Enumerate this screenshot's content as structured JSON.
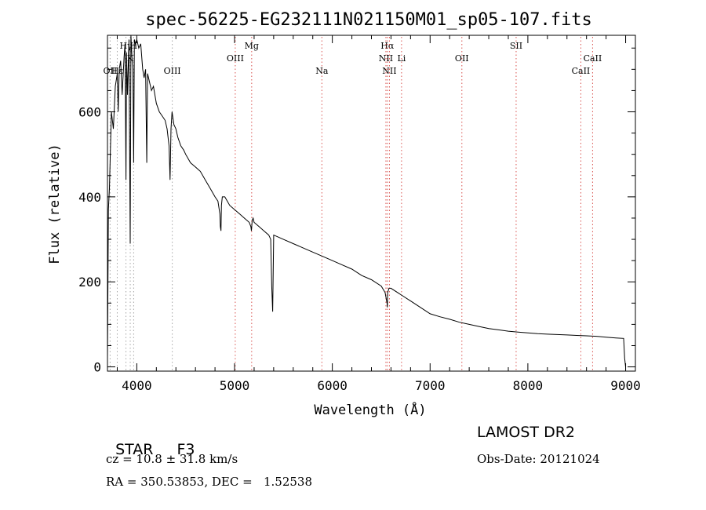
{
  "chart_data": {
    "type": "line",
    "title": "spec-56225-EG232111N021150M01_sp05-107.fits",
    "xlabel": "Wavelength (Å)",
    "ylabel": "Flux (relative)",
    "xlim": [
      3700,
      9100
    ],
    "ylim": [
      -10,
      780
    ],
    "xticks": [
      4000,
      5000,
      6000,
      7000,
      8000,
      9000
    ],
    "yticks": [
      0,
      200,
      400,
      600
    ],
    "grid": false,
    "series": [
      {
        "color": "#000000",
        "x": [
          3700,
          3710,
          3720,
          3740,
          3760,
          3780,
          3800,
          3810,
          3820,
          3835,
          3850,
          3870,
          3880,
          3889,
          3895,
          3905,
          3920,
          3933,
          3940,
          3950,
          3960,
          3968,
          3975,
          3985,
          4000,
          4020,
          4040,
          4060,
          4075,
          4090,
          4102,
          4110,
          4130,
          4150,
          4170,
          4200,
          4230,
          4260,
          4290,
          4310,
          4330,
          4340,
          4350,
          4360,
          4380,
          4400,
          4420,
          4450,
          4480,
          4500,
          4550,
          4600,
          4650,
          4700,
          4750,
          4800,
          4830,
          4850,
          4855,
          4861,
          4866,
          4875,
          4900,
          4950,
          5000,
          5050,
          5100,
          5150,
          5167,
          5172,
          5180,
          5190,
          5200,
          5250,
          5300,
          5350,
          5370,
          5380,
          5390,
          5400,
          5450,
          5500,
          5600,
          5700,
          5800,
          5900,
          6000,
          6100,
          6200,
          6300,
          6400,
          6500,
          6540,
          6560,
          6563,
          6566,
          6580,
          6600,
          6700,
          6800,
          6900,
          7000,
          7100,
          7200,
          7300,
          7400,
          7500,
          7600,
          7700,
          7800,
          7900,
          8000,
          8100,
          8200,
          8300,
          8400,
          8500,
          8600,
          8700,
          8800,
          8900,
          8980,
          8990,
          9000
        ],
        "values": [
          20,
          370,
          420,
          600,
          560,
          660,
          690,
          600,
          700,
          720,
          640,
          730,
          760,
          440,
          740,
          640,
          770,
          290,
          780,
          730,
          700,
          480,
          770,
          760,
          770,
          750,
          760,
          700,
          680,
          700,
          480,
          690,
          670,
          650,
          660,
          620,
          600,
          590,
          580,
          560,
          520,
          440,
          560,
          600,
          570,
          560,
          540,
          520,
          510,
          500,
          480,
          470,
          460,
          440,
          420,
          400,
          390,
          360,
          330,
          320,
          380,
          400,
          400,
          380,
          370,
          360,
          350,
          340,
          330,
          320,
          345,
          350,
          340,
          330,
          320,
          310,
          300,
          190,
          130,
          310,
          305,
          300,
          290,
          280,
          270,
          260,
          250,
          240,
          230,
          215,
          205,
          190,
          175,
          150,
          140,
          175,
          185,
          185,
          170,
          155,
          140,
          125,
          118,
          112,
          105,
          100,
          95,
          90,
          87,
          84,
          82,
          80,
          78,
          77,
          76,
          75,
          74,
          73,
          72,
          70,
          68,
          67,
          20,
          0
        ]
      }
    ],
    "line_markers": [
      {
        "label": "Hγ",
        "wavelength": 3889,
        "row": 0
      },
      {
        "label": "H",
        "wavelength": 3968,
        "row": 0
      },
      {
        "label": "K",
        "wavelength": 3933,
        "row": 0.5
      },
      {
        "label": "OII",
        "wavelength": 3727,
        "row": 1
      },
      {
        "label": "Hε",
        "wavelength": 3800,
        "row": 1
      },
      {
        "label": "OIII",
        "wavelength": 4363,
        "row": 1
      },
      {
        "label": "OIII",
        "wavelength": 5007,
        "row": 0.5
      },
      {
        "label": "Mg",
        "wavelength": 5175,
        "row": 0
      },
      {
        "label": "Na",
        "wavelength": 5893,
        "row": 1
      },
      {
        "label": "Hα",
        "wavelength": 6563,
        "row": 0
      },
      {
        "label": "NII",
        "wavelength": 6548,
        "row": 0.5
      },
      {
        "label": "Li",
        "wavelength": 6708,
        "row": 0.5
      },
      {
        "label": "NII",
        "wavelength": 6584,
        "row": 1
      },
      {
        "label": "OII",
        "wavelength": 7325,
        "row": 0.5
      },
      {
        "label": "SII",
        "wavelength": 7880,
        "row": 0
      },
      {
        "label": "CaII",
        "wavelength": 8662,
        "row": 0.5
      },
      {
        "label": "CaII",
        "wavelength": 8542,
        "row": 1
      }
    ],
    "line_marker_colors": {
      "blue_lines": "#a6a6a6",
      "red_lines": "#d9534f"
    }
  },
  "info": {
    "class_label": "STAR",
    "subclass": "F3",
    "survey": "LAMOST DR2",
    "cz": "cz = 10.8 ± 31.8 km/s",
    "obs_date": "Obs-Date: 20121024",
    "coords": "RA = 350.53853, DEC =   1.52538"
  }
}
